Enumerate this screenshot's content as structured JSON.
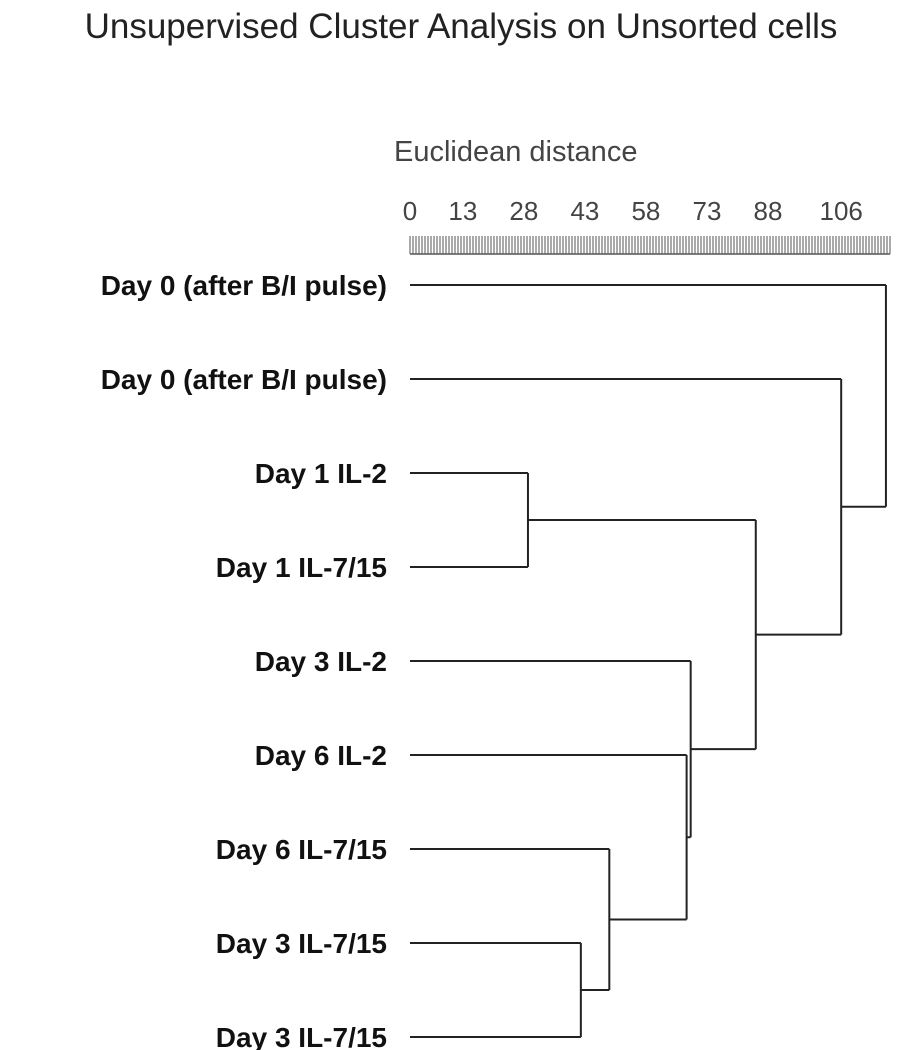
{
  "title": "Unsupervised Cluster Analysis on Unsorted cells",
  "axis_title": "Euclidean distance",
  "colors": {
    "lines": "#222222",
    "text": "#111111",
    "axis_text": "#444444"
  },
  "chart_data": {
    "type": "dendrogram",
    "axis": {
      "label": "Euclidean distance",
      "ticks": [
        0,
        13,
        28,
        43,
        58,
        73,
        88,
        106
      ],
      "range": [
        0,
        118
      ]
    },
    "leaves": [
      "Day 0 (after B/I pulse)",
      "Day 0 (after B/I pulse)",
      "Day 1 IL-2",
      "Day 1 IL-7/15",
      "Day 3 IL-2",
      "Day 6 IL-2",
      "Day 6 IL-7/15",
      "Day 3 IL-7/15",
      "Day 3 IL-7/15"
    ],
    "merges": [
      {
        "id": "m1",
        "a": "L7",
        "b": "L8",
        "height": 42
      },
      {
        "id": "m2",
        "a": "L6",
        "b": "m1",
        "height": 49
      },
      {
        "id": "m3",
        "a": "L5",
        "b": "m2",
        "height": 68
      },
      {
        "id": "m4",
        "a": "L4",
        "b": "m3",
        "height": 69
      },
      {
        "id": "m5",
        "a": "L2",
        "b": "L3",
        "height": 29
      },
      {
        "id": "m6",
        "a": "m5",
        "b": "m4",
        "height": 85
      },
      {
        "id": "m7",
        "a": "L1",
        "b": "m6",
        "height": 106
      },
      {
        "id": "m8",
        "a": "L0",
        "b": "m7",
        "height": 117
      }
    ]
  }
}
